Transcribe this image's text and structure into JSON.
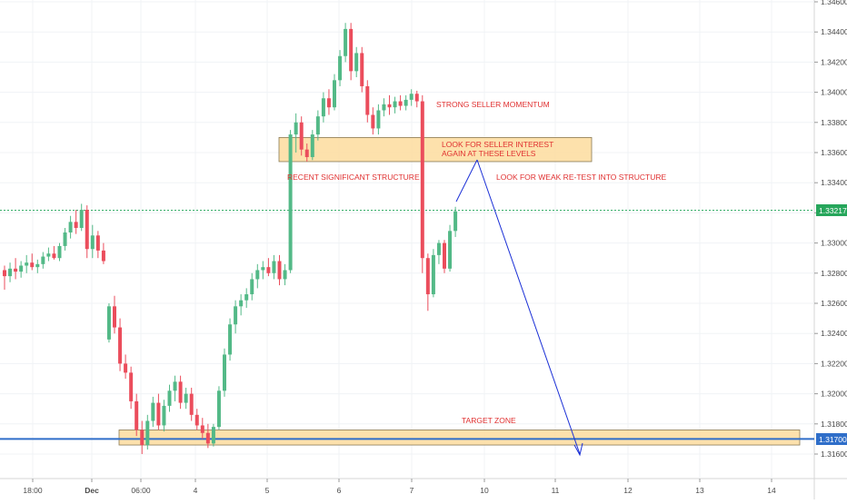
{
  "chart_data": {
    "type": "candlestick",
    "title": "",
    "xlabel": "",
    "ylabel": "",
    "ylim": [
      1.315,
      1.3462
    ],
    "y_ticks": [
      "1.34600",
      "1.34400",
      "1.34200",
      "1.34000",
      "1.33800",
      "1.33600",
      "1.33400",
      "1.33200",
      "1.33000",
      "1.32800",
      "1.32600",
      "1.32400",
      "1.32200",
      "1.32000",
      "1.31800",
      "1.31600"
    ],
    "x_ticks": [
      "18:00",
      "Dec",
      "06:00",
      "4",
      "5",
      "6",
      "7",
      "10",
      "11",
      "12",
      "13",
      "14"
    ],
    "price_labels": {
      "current": "1.33217",
      "target": "1.31700"
    },
    "annotations": {
      "strong_seller": "STRONG SELLER MOMENTUM",
      "seller_interest_1": "LOOK FOR SELLER INTEREST",
      "seller_interest_2": "AGAIN AT THESE LEVELS",
      "recent_structure": "RECENT SIGNIFICANT STRUCTURE",
      "weak_retest": "LOOK FOR WEAK RE-TEST INTO STRUCTURE",
      "target_zone": "TARGET ZONE"
    },
    "zones": [
      {
        "name": "structure-zone",
        "y_top": 1.337,
        "y_bottom": 1.3354
      },
      {
        "name": "target-zone",
        "y_top": 1.3176,
        "y_bottom": 1.3166
      }
    ],
    "horizontal_lines": [
      {
        "name": "current-price-line",
        "value": 1.33217,
        "style": "dotted",
        "color": "#26a65b"
      },
      {
        "name": "target-line",
        "value": 1.317,
        "style": "solid",
        "color": "#2f6ec9"
      }
    ],
    "colors": {
      "up": "#53b987",
      "down": "#eb4d5c",
      "zone_fill": "#fddc9d",
      "arrow": "#1a2fd6",
      "annotation_text": "#e03030",
      "axis_label_bg": "#2f6ec9",
      "current_label_bg": "#26a65b"
    },
    "series": [
      {
        "o": 1.3282,
        "h": 1.3285,
        "l": 1.3269,
        "c": 1.3278
      },
      {
        "o": 1.3278,
        "h": 1.3287,
        "l": 1.3274,
        "c": 1.3283
      },
      {
        "o": 1.3283,
        "h": 1.329,
        "l": 1.3276,
        "c": 1.3281
      },
      {
        "o": 1.3281,
        "h": 1.3288,
        "l": 1.3277,
        "c": 1.3285
      },
      {
        "o": 1.3285,
        "h": 1.3292,
        "l": 1.328,
        "c": 1.3287
      },
      {
        "o": 1.3287,
        "h": 1.3293,
        "l": 1.3282,
        "c": 1.3284
      },
      {
        "o": 1.3284,
        "h": 1.3289,
        "l": 1.328,
        "c": 1.3286
      },
      {
        "o": 1.3286,
        "h": 1.3294,
        "l": 1.3283,
        "c": 1.3291
      },
      {
        "o": 1.3291,
        "h": 1.3297,
        "l": 1.3288,
        "c": 1.3293
      },
      {
        "o": 1.3293,
        "h": 1.3298,
        "l": 1.3289,
        "c": 1.329
      },
      {
        "o": 1.329,
        "h": 1.33,
        "l": 1.3288,
        "c": 1.3298
      },
      {
        "o": 1.3298,
        "h": 1.331,
        "l": 1.3295,
        "c": 1.3307
      },
      {
        "o": 1.3307,
        "h": 1.3318,
        "l": 1.3303,
        "c": 1.3314
      },
      {
        "o": 1.3314,
        "h": 1.3322,
        "l": 1.3306,
        "c": 1.331
      },
      {
        "o": 1.331,
        "h": 1.3326,
        "l": 1.3308,
        "c": 1.3322
      },
      {
        "o": 1.3322,
        "h": 1.3325,
        "l": 1.329,
        "c": 1.3296
      },
      {
        "o": 1.3296,
        "h": 1.3312,
        "l": 1.329,
        "c": 1.3305
      },
      {
        "o": 1.3305,
        "h": 1.3308,
        "l": 1.329,
        "c": 1.3295
      },
      {
        "o": 1.3295,
        "h": 1.33,
        "l": 1.3286,
        "c": 1.3288
      },
      {
        "o": 1.3236,
        "h": 1.326,
        "l": 1.3234,
        "c": 1.3258
      },
      {
        "o": 1.3258,
        "h": 1.3265,
        "l": 1.324,
        "c": 1.3244
      },
      {
        "o": 1.3244,
        "h": 1.325,
        "l": 1.3215,
        "c": 1.322
      },
      {
        "o": 1.322,
        "h": 1.3226,
        "l": 1.321,
        "c": 1.3214
      },
      {
        "o": 1.3214,
        "h": 1.3218,
        "l": 1.319,
        "c": 1.3195
      },
      {
        "o": 1.3195,
        "h": 1.32,
        "l": 1.3172,
        "c": 1.3176
      },
      {
        "o": 1.3176,
        "h": 1.3182,
        "l": 1.316,
        "c": 1.3166
      },
      {
        "o": 1.3166,
        "h": 1.3186,
        "l": 1.3163,
        "c": 1.3182
      },
      {
        "o": 1.3182,
        "h": 1.3198,
        "l": 1.3178,
        "c": 1.3194
      },
      {
        "o": 1.3194,
        "h": 1.32,
        "l": 1.3176,
        "c": 1.3179
      },
      {
        "o": 1.3179,
        "h": 1.3196,
        "l": 1.3175,
        "c": 1.3192
      },
      {
        "o": 1.3192,
        "h": 1.3206,
        "l": 1.3188,
        "c": 1.3202
      },
      {
        "o": 1.3202,
        "h": 1.3212,
        "l": 1.3195,
        "c": 1.3208
      },
      {
        "o": 1.3208,
        "h": 1.3212,
        "l": 1.319,
        "c": 1.3194
      },
      {
        "o": 1.3194,
        "h": 1.3204,
        "l": 1.319,
        "c": 1.32
      },
      {
        "o": 1.32,
        "h": 1.3204,
        "l": 1.3182,
        "c": 1.3186
      },
      {
        "o": 1.3186,
        "h": 1.319,
        "l": 1.3176,
        "c": 1.3179
      },
      {
        "o": 1.3179,
        "h": 1.3184,
        "l": 1.317,
        "c": 1.3174
      },
      {
        "o": 1.3174,
        "h": 1.318,
        "l": 1.3164,
        "c": 1.3167
      },
      {
        "o": 1.3167,
        "h": 1.318,
        "l": 1.3165,
        "c": 1.3178
      },
      {
        "o": 1.3178,
        "h": 1.3205,
        "l": 1.3176,
        "c": 1.3202
      },
      {
        "o": 1.3202,
        "h": 1.323,
        "l": 1.3198,
        "c": 1.3226
      },
      {
        "o": 1.3226,
        "h": 1.325,
        "l": 1.3222,
        "c": 1.3246
      },
      {
        "o": 1.3246,
        "h": 1.3262,
        "l": 1.324,
        "c": 1.3258
      },
      {
        "o": 1.3258,
        "h": 1.3266,
        "l": 1.3252,
        "c": 1.3262
      },
      {
        "o": 1.3262,
        "h": 1.327,
        "l": 1.3257,
        "c": 1.3266
      },
      {
        "o": 1.3266,
        "h": 1.328,
        "l": 1.3262,
        "c": 1.3276
      },
      {
        "o": 1.3276,
        "h": 1.3286,
        "l": 1.327,
        "c": 1.3282
      },
      {
        "o": 1.3282,
        "h": 1.3288,
        "l": 1.3276,
        "c": 1.3284
      },
      {
        "o": 1.3284,
        "h": 1.329,
        "l": 1.3278,
        "c": 1.328
      },
      {
        "o": 1.328,
        "h": 1.3292,
        "l": 1.3276,
        "c": 1.3288
      },
      {
        "o": 1.3288,
        "h": 1.3292,
        "l": 1.3272,
        "c": 1.3276
      },
      {
        "o": 1.3276,
        "h": 1.3286,
        "l": 1.3272,
        "c": 1.3282
      },
      {
        "o": 1.3282,
        "h": 1.3375,
        "l": 1.328,
        "c": 1.3372
      },
      {
        "o": 1.3372,
        "h": 1.3386,
        "l": 1.336,
        "c": 1.338
      },
      {
        "o": 1.338,
        "h": 1.3384,
        "l": 1.3358,
        "c": 1.3362
      },
      {
        "o": 1.3362,
        "h": 1.3366,
        "l": 1.3354,
        "c": 1.3357
      },
      {
        "o": 1.3357,
        "h": 1.3375,
        "l": 1.3355,
        "c": 1.3372
      },
      {
        "o": 1.3372,
        "h": 1.3388,
        "l": 1.3368,
        "c": 1.3384
      },
      {
        "o": 1.3384,
        "h": 1.34,
        "l": 1.338,
        "c": 1.3396
      },
      {
        "o": 1.3396,
        "h": 1.3402,
        "l": 1.3385,
        "c": 1.339
      },
      {
        "o": 1.339,
        "h": 1.3412,
        "l": 1.3388,
        "c": 1.3408
      },
      {
        "o": 1.3408,
        "h": 1.3428,
        "l": 1.3404,
        "c": 1.3424
      },
      {
        "o": 1.3424,
        "h": 1.3446,
        "l": 1.342,
        "c": 1.3442
      },
      {
        "o": 1.3442,
        "h": 1.3446,
        "l": 1.3408,
        "c": 1.3414
      },
      {
        "o": 1.3414,
        "h": 1.343,
        "l": 1.341,
        "c": 1.3426
      },
      {
        "o": 1.3426,
        "h": 1.343,
        "l": 1.34,
        "c": 1.3404
      },
      {
        "o": 1.3404,
        "h": 1.3408,
        "l": 1.338,
        "c": 1.3385
      },
      {
        "o": 1.3385,
        "h": 1.339,
        "l": 1.3372,
        "c": 1.3376
      },
      {
        "o": 1.3376,
        "h": 1.3392,
        "l": 1.3372,
        "c": 1.3388
      },
      {
        "o": 1.3388,
        "h": 1.3396,
        "l": 1.3384,
        "c": 1.3392
      },
      {
        "o": 1.3392,
        "h": 1.3398,
        "l": 1.3385,
        "c": 1.339
      },
      {
        "o": 1.339,
        "h": 1.3397,
        "l": 1.3386,
        "c": 1.3394
      },
      {
        "o": 1.3394,
        "h": 1.3398,
        "l": 1.3388,
        "c": 1.3391
      },
      {
        "o": 1.3391,
        "h": 1.3398,
        "l": 1.3388,
        "c": 1.3395
      },
      {
        "o": 1.3395,
        "h": 1.3402,
        "l": 1.3391,
        "c": 1.3399
      },
      {
        "o": 1.3399,
        "h": 1.3401,
        "l": 1.339,
        "c": 1.3394
      },
      {
        "o": 1.3394,
        "h": 1.3398,
        "l": 1.328,
        "c": 1.329
      },
      {
        "o": 1.329,
        "h": 1.3293,
        "l": 1.3255,
        "c": 1.3266
      },
      {
        "o": 1.3266,
        "h": 1.3296,
        "l": 1.3264,
        "c": 1.3292
      },
      {
        "o": 1.3292,
        "h": 1.3302,
        "l": 1.3286,
        "c": 1.33
      },
      {
        "o": 1.33,
        "h": 1.3302,
        "l": 1.328,
        "c": 1.3283
      },
      {
        "o": 1.3283,
        "h": 1.3312,
        "l": 1.3281,
        "c": 1.3308
      },
      {
        "o": 1.3308,
        "h": 1.3324,
        "l": 1.3304,
        "c": 1.3321
      }
    ]
  }
}
